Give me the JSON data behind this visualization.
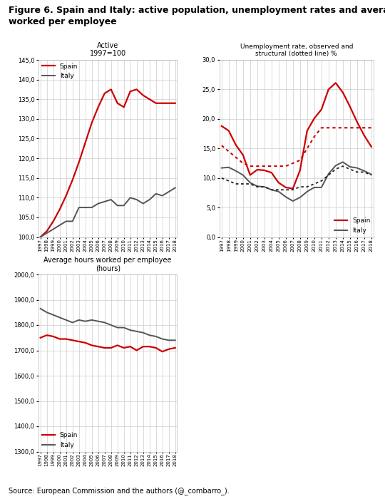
{
  "title": "Figure 6. Spain and Italy: active population, unemployment rates and average hours\nworked per employee",
  "source": "Source: European Commission and the authors (@_combarro_).",
  "years": [
    1997,
    1998,
    1999,
    2000,
    2001,
    2002,
    2003,
    2004,
    2005,
    2006,
    2007,
    2008,
    2009,
    2010,
    2011,
    2012,
    2013,
    2014,
    2015,
    2016,
    2017,
    2018
  ],
  "active_spain": [
    100,
    101.5,
    104,
    107,
    110.5,
    114.5,
    119,
    124,
    129,
    133,
    136.5,
    137.5,
    134,
    133,
    137,
    137.5,
    136,
    135,
    134,
    134,
    134,
    134
  ],
  "active_italy": [
    100,
    101,
    102,
    103,
    104,
    104,
    107.5,
    107.5,
    107.5,
    108.5,
    109,
    109.5,
    108,
    108,
    110,
    109.5,
    108.5,
    109.5,
    111,
    110.5,
    111.5,
    112.5
  ],
  "unemp_obs_spain": [
    18.8,
    18.0,
    15.6,
    13.9,
    10.5,
    11.4,
    11.3,
    10.9,
    9.2,
    8.4,
    8.2,
    11.3,
    18.0,
    20.1,
    21.6,
    25.0,
    26.1,
    24.5,
    22.1,
    19.5,
    17.2,
    15.3
  ],
  "unemp_obs_italy": [
    11.7,
    11.8,
    11.2,
    10.5,
    9.2,
    8.6,
    8.5,
    8.0,
    7.7,
    6.8,
    6.1,
    6.7,
    7.7,
    8.4,
    8.4,
    10.7,
    12.1,
    12.7,
    11.9,
    11.7,
    11.2,
    10.6
  ],
  "unemp_str_spain": [
    15.5,
    14.5,
    13.5,
    12.5,
    12.0,
    12.0,
    12.0,
    12.0,
    12.0,
    12.0,
    12.5,
    13.0,
    15.0,
    17.0,
    18.5,
    18.5,
    18.5,
    18.5,
    18.5,
    18.5,
    18.5,
    18.5
  ],
  "unemp_str_italy": [
    10.0,
    9.5,
    9.0,
    9.0,
    9.0,
    8.5,
    8.5,
    8.0,
    8.0,
    8.0,
    8.0,
    8.5,
    8.5,
    9.0,
    9.5,
    10.5,
    11.5,
    12.0,
    11.5,
    11.0,
    11.0,
    10.5
  ],
  "hours_spain": [
    1750,
    1760,
    1755,
    1745,
    1745,
    1740,
    1735,
    1730,
    1720,
    1715,
    1710,
    1710,
    1720,
    1710,
    1715,
    1700,
    1715,
    1715,
    1710,
    1695,
    1705,
    1710
  ],
  "hours_italy": [
    1865,
    1850,
    1840,
    1830,
    1820,
    1810,
    1820,
    1815,
    1820,
    1815,
    1810,
    1800,
    1790,
    1790,
    1780,
    1775,
    1770,
    1760,
    1755,
    1745,
    1740,
    1740
  ],
  "color_spain": "#cc0000",
  "color_italy": "#555555",
  "color_struct_italy": "#222222",
  "background": "#ffffff",
  "grid_color": "#cccccc"
}
